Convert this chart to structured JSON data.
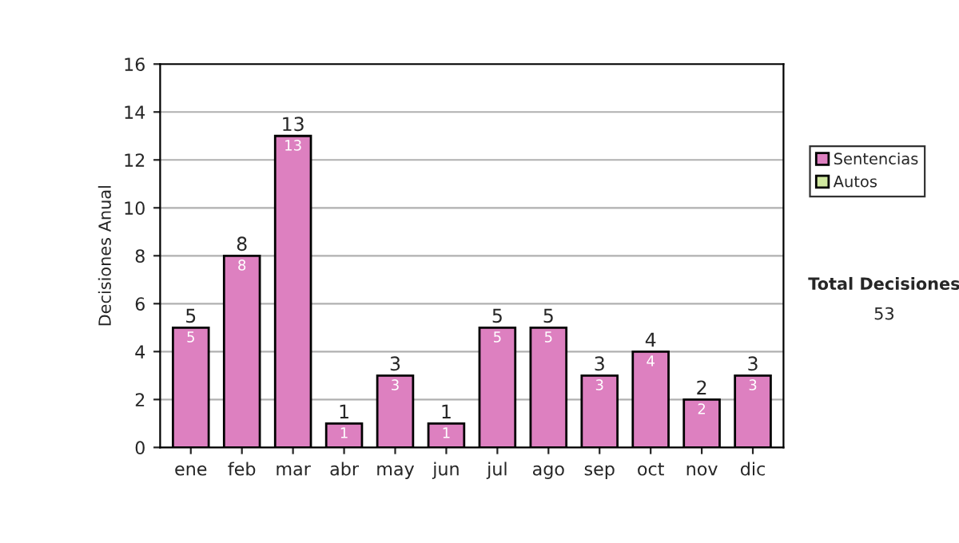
{
  "chart_data": {
    "type": "bar",
    "ylabel": "Decisiones Anual",
    "categories": [
      "ene",
      "feb",
      "mar",
      "abr",
      "may",
      "jun",
      "jul",
      "ago",
      "sep",
      "oct",
      "nov",
      "dic"
    ],
    "series": [
      {
        "name": "Sentencias",
        "color": "#dd80c0",
        "values": [
          5,
          8,
          13,
          1,
          3,
          1,
          5,
          5,
          3,
          4,
          2,
          3
        ]
      },
      {
        "name": "Autos",
        "color": "#d0e8a0",
        "values": [
          null,
          null,
          null,
          null,
          null,
          null,
          null,
          null,
          null,
          null,
          null,
          null
        ]
      }
    ],
    "stacked": true,
    "data_labels": true,
    "totals": [
      "5",
      "8",
      "13",
      "1",
      "3",
      "1",
      "5",
      "5",
      "3",
      "4",
      "2",
      "3"
    ],
    "ylim": [
      0,
      16
    ],
    "yticks": [
      0,
      2,
      4,
      6,
      8,
      10,
      12,
      14,
      16
    ],
    "grid": "y",
    "legend": "right",
    "annotations": [
      "Total Decisiones",
      "53"
    ]
  }
}
